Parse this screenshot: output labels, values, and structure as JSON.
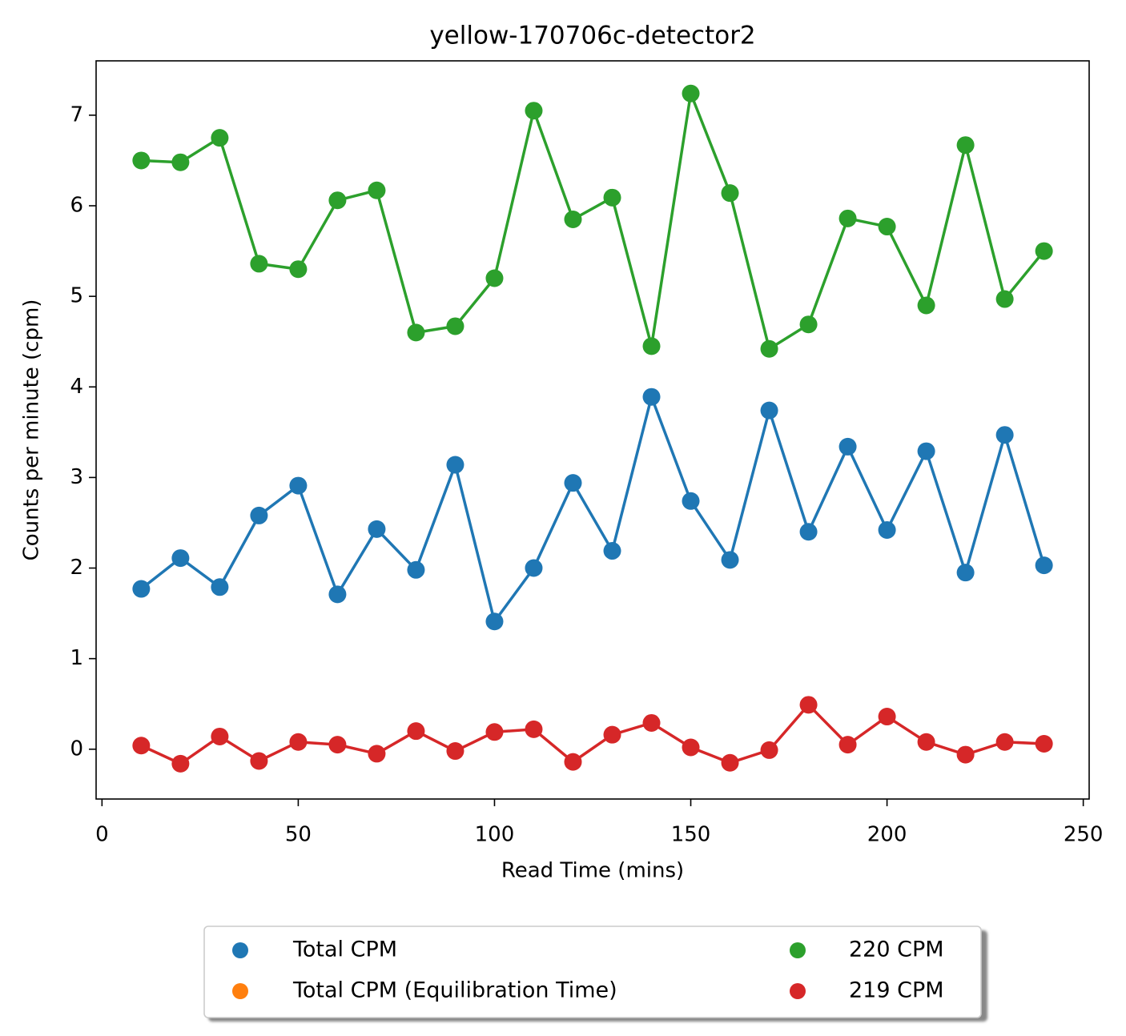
{
  "chart_data": {
    "type": "line",
    "title": "yellow-170706c-detector2",
    "x_label": "Read Time (mins)",
    "y_label": "Counts per minute (cpm)",
    "x": [
      10,
      20,
      30,
      40,
      50,
      60,
      70,
      80,
      90,
      100,
      110,
      120,
      130,
      140,
      150,
      160,
      170,
      180,
      190,
      200,
      210,
      220,
      230,
      240
    ],
    "series": [
      {
        "name": "Total CPM",
        "color": "#1f77b4",
        "values": [
          1.77,
          2.11,
          1.79,
          2.58,
          2.91,
          1.71,
          2.43,
          1.98,
          3.14,
          1.41,
          2.0,
          2.94,
          2.19,
          3.89,
          2.74,
          2.09,
          3.74,
          2.4,
          3.34,
          2.42,
          3.29,
          1.95,
          3.47,
          2.03
        ]
      },
      {
        "name": "Total CPM (Equilibration Time)",
        "color": "#ff7f0e",
        "x": [],
        "values": []
      },
      {
        "name": "220 CPM",
        "color": "#2ca02c",
        "values": [
          6.5,
          6.48,
          6.75,
          5.36,
          5.3,
          6.06,
          6.17,
          4.6,
          4.67,
          5.2,
          7.05,
          5.85,
          6.09,
          4.45,
          7.24,
          6.14,
          4.42,
          4.69,
          5.86,
          5.77,
          4.9,
          6.67,
          4.97,
          5.5
        ]
      },
      {
        "name": "219 CPM",
        "color": "#d62728",
        "values": [
          0.04,
          -0.16,
          0.14,
          -0.13,
          0.08,
          0.05,
          -0.05,
          0.2,
          -0.02,
          0.19,
          0.22,
          -0.14,
          0.16,
          0.29,
          0.02,
          -0.15,
          -0.01,
          0.49,
          0.05,
          0.36,
          0.08,
          -0.06,
          0.08,
          0.06
        ]
      }
    ],
    "xlim": [
      -1.5,
      251.5
    ],
    "xticks": [
      0,
      50,
      100,
      150,
      200,
      250
    ],
    "ylim": [
      -0.55,
      7.6
    ],
    "yticks": [
      0,
      1,
      2,
      3,
      4,
      5,
      6,
      7
    ],
    "legend": "below"
  }
}
